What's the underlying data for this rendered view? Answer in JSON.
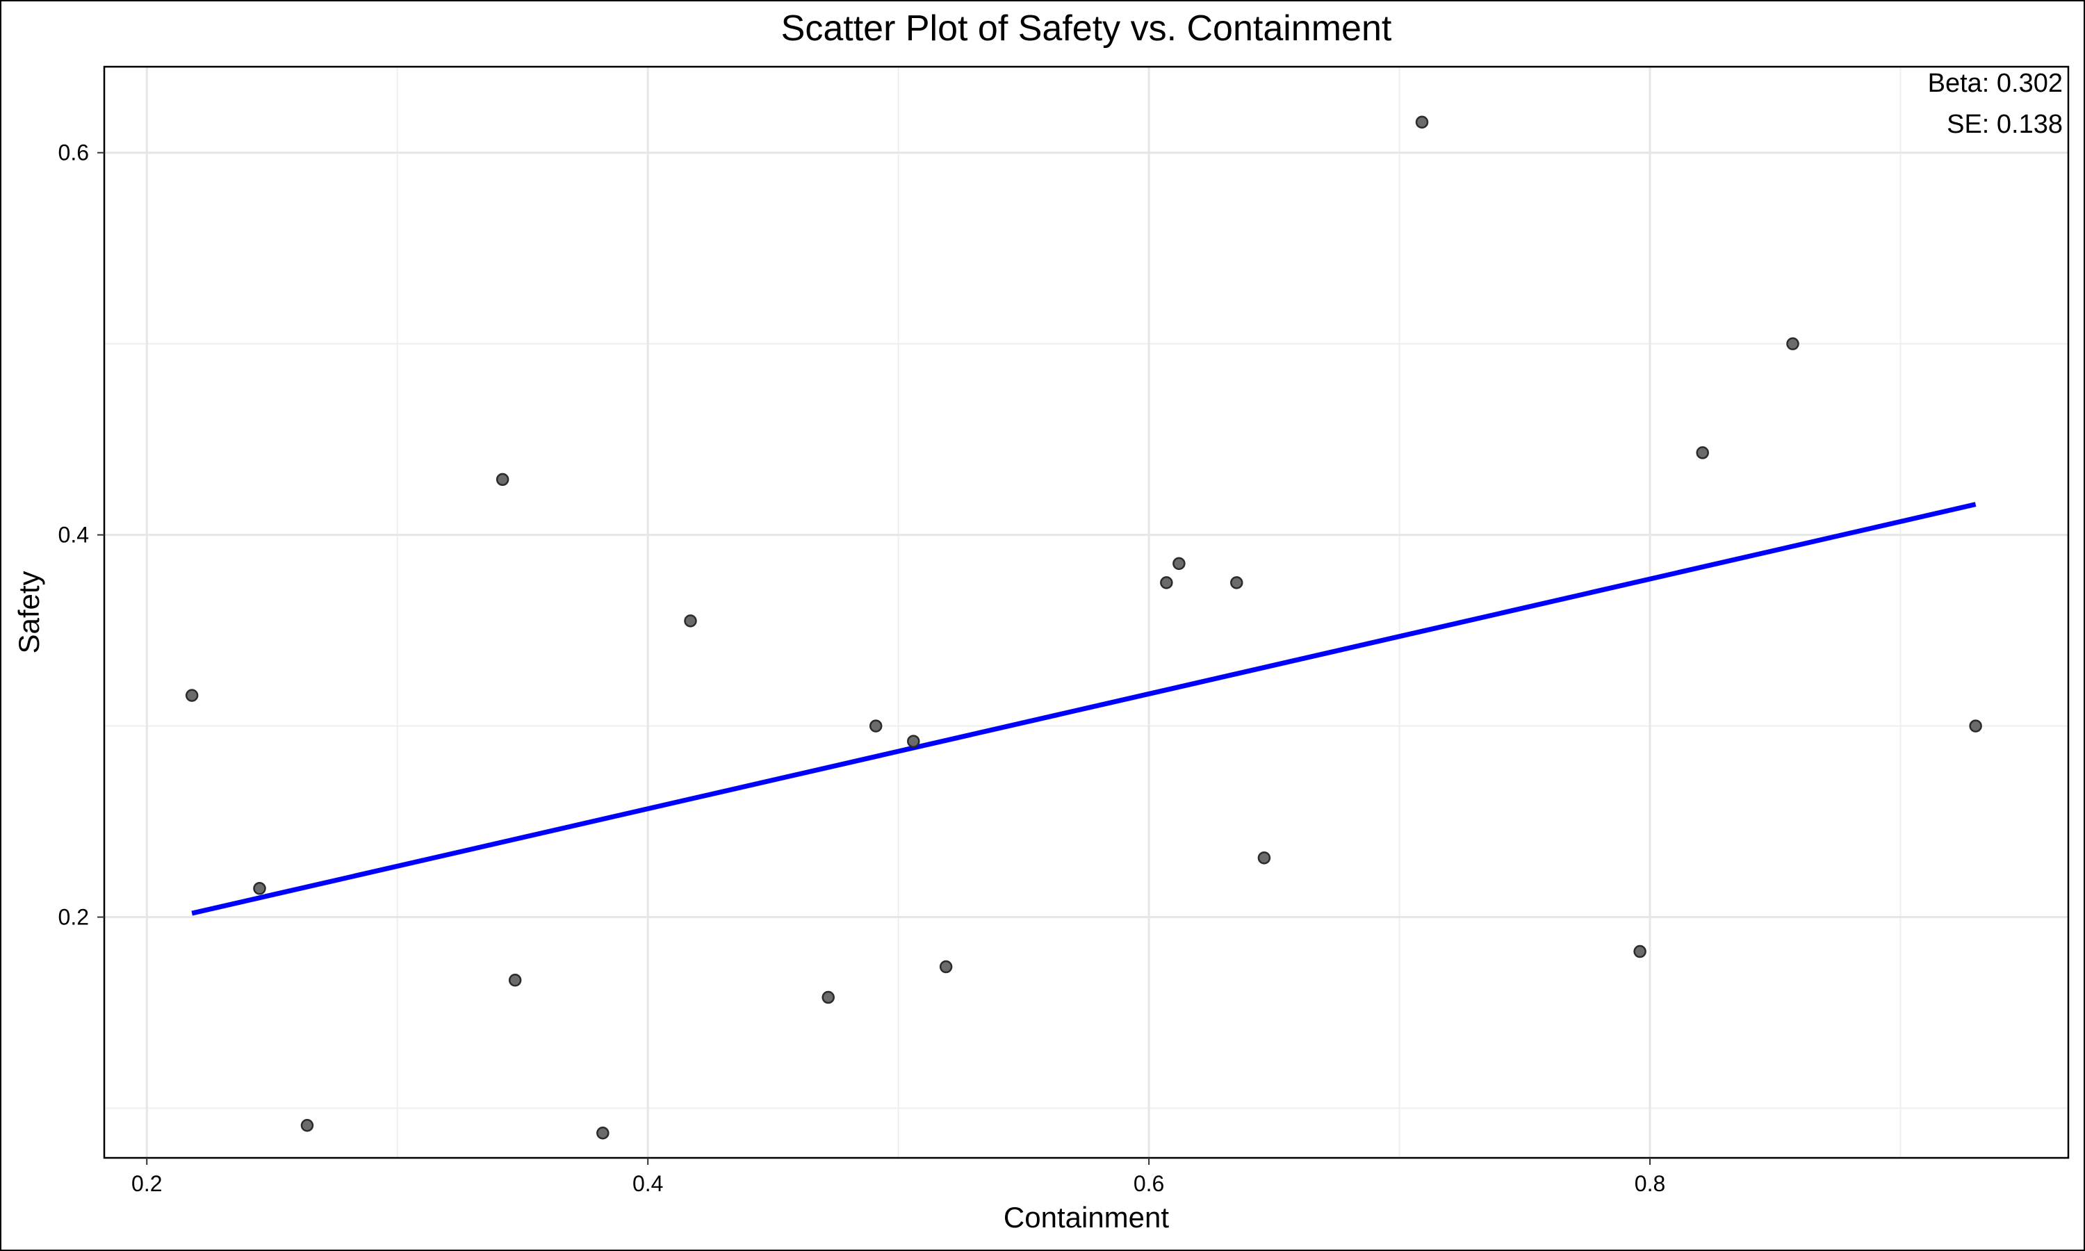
{
  "chart_data": {
    "type": "scatter",
    "title": "Scatter Plot of Safety vs. Containment",
    "xlabel": "Containment",
    "ylabel": "Safety",
    "xlim": [
      0.183,
      0.967
    ],
    "ylim": [
      0.074,
      0.645
    ],
    "xticks": [
      0.2,
      0.4,
      0.6,
      0.8
    ],
    "xtick_labels": [
      "0.2",
      "0.4",
      "0.6",
      "0.8"
    ],
    "xminor": [
      0.3,
      0.5,
      0.7,
      0.9
    ],
    "yticks": [
      0.2,
      0.4,
      0.6
    ],
    "ytick_labels": [
      "0.2",
      "0.4",
      "0.6"
    ],
    "yminor": [
      0.1,
      0.3,
      0.5
    ],
    "grid": true,
    "points": [
      {
        "x": 0.218,
        "y": 0.316
      },
      {
        "x": 0.245,
        "y": 0.215
      },
      {
        "x": 0.264,
        "y": 0.091
      },
      {
        "x": 0.342,
        "y": 0.429
      },
      {
        "x": 0.347,
        "y": 0.167
      },
      {
        "x": 0.382,
        "y": 0.087
      },
      {
        "x": 0.417,
        "y": 0.355
      },
      {
        "x": 0.472,
        "y": 0.158
      },
      {
        "x": 0.491,
        "y": 0.3
      },
      {
        "x": 0.506,
        "y": 0.292
      },
      {
        "x": 0.519,
        "y": 0.174
      },
      {
        "x": 0.607,
        "y": 0.375
      },
      {
        "x": 0.612,
        "y": 0.385
      },
      {
        "x": 0.635,
        "y": 0.375
      },
      {
        "x": 0.646,
        "y": 0.231
      },
      {
        "x": 0.709,
        "y": 0.616
      },
      {
        "x": 0.796,
        "y": 0.182
      },
      {
        "x": 0.821,
        "y": 0.443
      },
      {
        "x": 0.857,
        "y": 0.5
      },
      {
        "x": 0.93,
        "y": 0.3
      }
    ],
    "fit_line": {
      "x": [
        0.218,
        0.93
      ],
      "y": [
        0.202,
        0.416
      ]
    },
    "fit_color": "#0000ff",
    "point_color": "#6b6b6b",
    "annotations": [
      "Beta: 0.302",
      "SE: 0.138"
    ]
  }
}
